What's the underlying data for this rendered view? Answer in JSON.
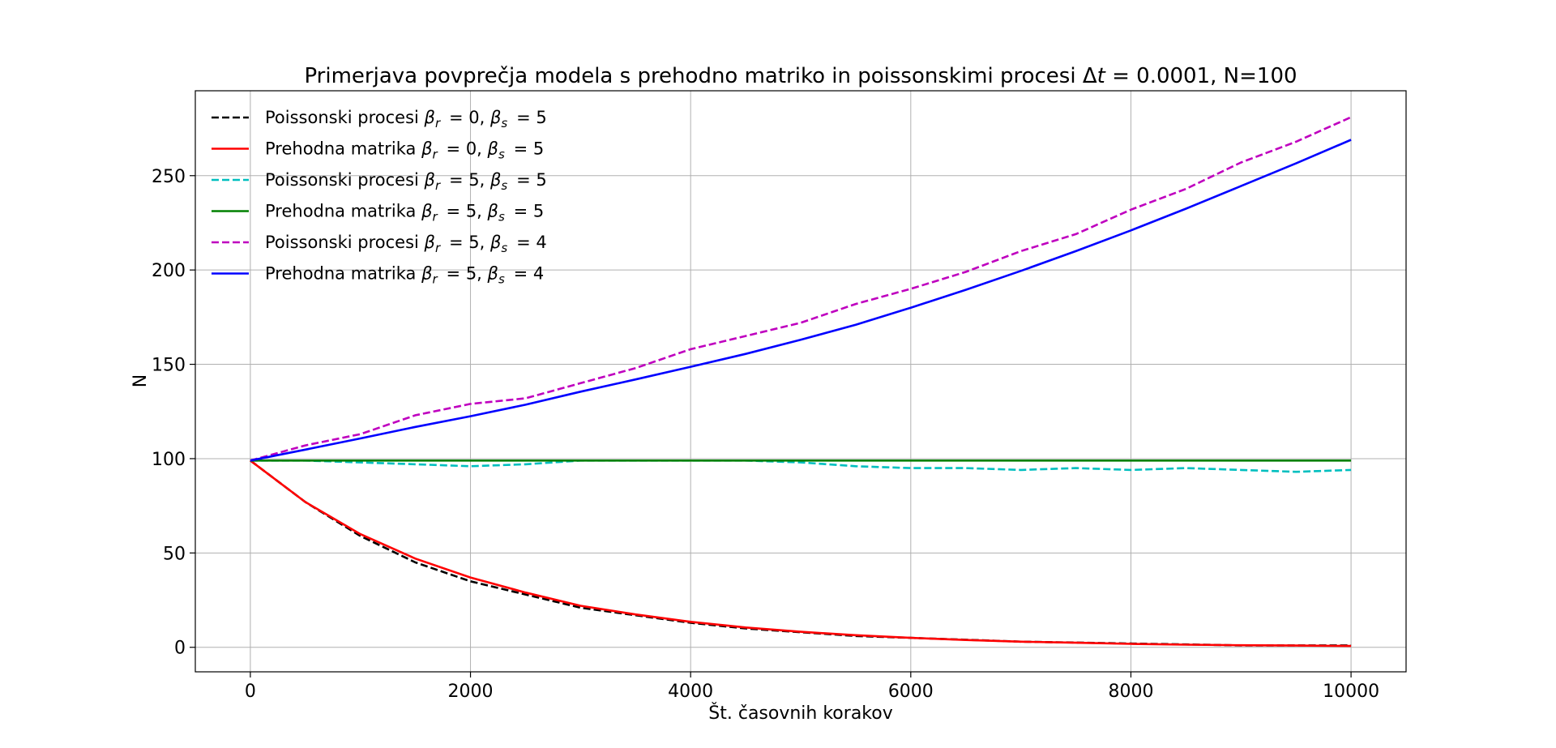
{
  "chart_data": {
    "type": "line",
    "title": "Primerjava povprečja modela s prehodno matriko in poissonskimi procesi Δt = 0.0001, N=100",
    "xlabel": "Št. časovnih korakov",
    "ylabel": "N",
    "xlim": [
      -500,
      10500
    ],
    "ylim": [
      -13,
      295
    ],
    "xticks": [
      0,
      2000,
      4000,
      6000,
      8000,
      10000
    ],
    "yticks": [
      0,
      50,
      100,
      150,
      200,
      250
    ],
    "grid": true,
    "legend_position": "top-left",
    "series": [
      {
        "name": "Poissonski procesi  βr = 0, βs = 5",
        "color": "#000000",
        "dash": true,
        "x": [
          0,
          500,
          1000,
          1500,
          2000,
          2500,
          3000,
          3500,
          4000,
          4500,
          5000,
          5500,
          6000,
          6500,
          7000,
          7500,
          8000,
          8500,
          9000,
          9500,
          10000
        ],
        "y": [
          99,
          77,
          59,
          45,
          35,
          28,
          21,
          17,
          13,
          10,
          8,
          6,
          5,
          4,
          3,
          2.5,
          2,
          1.5,
          1,
          1,
          1
        ]
      },
      {
        "name": "Prehodna matrika βr = 0, βs = 5",
        "color": "#ff0000",
        "dash": false,
        "x": [
          0,
          500,
          1000,
          1500,
          2000,
          2500,
          3000,
          3500,
          4000,
          4500,
          5000,
          5500,
          6000,
          6500,
          7000,
          7500,
          8000,
          8500,
          9000,
          9500,
          10000
        ],
        "y": [
          99,
          77,
          60,
          47,
          37,
          29,
          22,
          17.4,
          13.5,
          10.5,
          8.2,
          6.4,
          5,
          3.9,
          3,
          2.4,
          1.8,
          1.4,
          1.1,
          0.9,
          0.7
        ]
      },
      {
        "name": "Poissonski procesi  βr = 5, βs = 5",
        "color": "#00bfbf",
        "dash": true,
        "x": [
          0,
          500,
          1000,
          1500,
          2000,
          2500,
          3000,
          3500,
          4000,
          4500,
          5000,
          5500,
          6000,
          6500,
          7000,
          7500,
          8000,
          8500,
          9000,
          9500,
          10000
        ],
        "y": [
          99,
          99,
          98,
          97,
          96,
          97,
          99,
          99,
          99,
          99,
          98,
          96,
          95,
          95,
          94,
          95,
          94,
          95,
          94,
          93,
          94
        ]
      },
      {
        "name": "Prehodna matrika βr = 5, βs = 5",
        "color": "#008000",
        "dash": false,
        "x": [
          0,
          10000
        ],
        "y": [
          99,
          99
        ]
      },
      {
        "name": "Poissonski procesi  βr = 5, βs = 4",
        "color": "#bf00bf",
        "dash": true,
        "x": [
          0,
          500,
          1000,
          1500,
          2000,
          2500,
          3000,
          3500,
          4000,
          4500,
          5000,
          5500,
          6000,
          6500,
          7000,
          7500,
          8000,
          8500,
          9000,
          9500,
          10000
        ],
        "y": [
          99,
          107,
          113,
          123,
          129,
          132,
          140,
          148,
          158,
          165,
          172,
          182,
          190,
          199,
          210,
          219,
          232,
          243,
          257,
          268,
          281
        ]
      },
      {
        "name": "Prehodna matrika βr = 5, βs = 4",
        "color": "#0000ff",
        "dash": false,
        "x": [
          0,
          500,
          1000,
          1500,
          2000,
          2500,
          3000,
          3500,
          4000,
          4500,
          5000,
          5500,
          6000,
          6500,
          7000,
          7500,
          8000,
          8500,
          9000,
          9500,
          10000
        ],
        "y": [
          99,
          104.8,
          110.7,
          116.8,
          122.5,
          128.6,
          135.5,
          142,
          148.7,
          155.5,
          163,
          171,
          180,
          189.5,
          199.5,
          210,
          221,
          232.5,
          244.5,
          256.5,
          269
        ]
      }
    ]
  }
}
